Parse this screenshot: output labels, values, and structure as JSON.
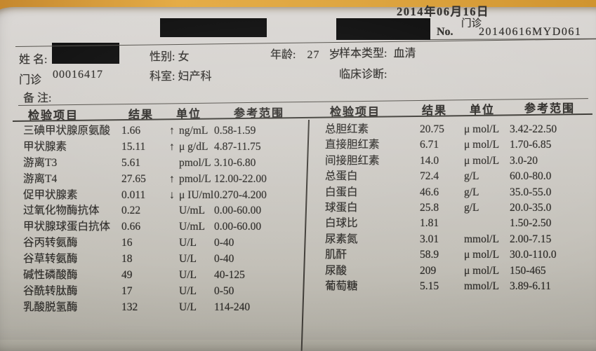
{
  "report": {
    "date": "2014年06月16日",
    "visit_type": "门诊",
    "no_label": "No.",
    "report_no": "20140616MYD061"
  },
  "patient": {
    "name_label": "姓 名:",
    "gender_label": "性别:",
    "gender": "女",
    "age_label": "年龄:",
    "age": "27",
    "age_unit": "岁",
    "sample_type_label": "样本类型:",
    "sample_type": "血清",
    "clinic_label": "门诊",
    "clinic_no": "00016417",
    "dept_label": "科室:",
    "dept": "妇产科",
    "diagnosis_label": "临床诊断:",
    "remark_label": "备 注:"
  },
  "table": {
    "headers": [
      "检验项目",
      "结果",
      "单位",
      "参考范围"
    ],
    "left_rows": [
      {
        "item": "三碘甲状腺原氨酸",
        "result": "1.66",
        "flag": "↑",
        "unit": "ng/mL",
        "range": "0.58-1.59"
      },
      {
        "item": "甲状腺素",
        "result": "15.11",
        "flag": "↑",
        "unit": "μ g/dL",
        "range": "4.87-11.75"
      },
      {
        "item": "游离T3",
        "result": "5.61",
        "flag": "",
        "unit": "pmol/L",
        "range": "3.10-6.80"
      },
      {
        "item": "游离T4",
        "result": "27.65",
        "flag": "↑",
        "unit": "pmol/L",
        "range": "12.00-22.00"
      },
      {
        "item": "促甲状腺素",
        "result": "0.011",
        "flag": "↓",
        "unit": "μ IU/ml",
        "range": "0.270-4.200"
      },
      {
        "item": "过氧化物酶抗体",
        "result": "0.22",
        "flag": "",
        "unit": "U/mL",
        "range": "0.00-60.00"
      },
      {
        "item": "甲状腺球蛋白抗体",
        "result": "0.66",
        "flag": "",
        "unit": "U/mL",
        "range": "0.00-60.00"
      },
      {
        "item": "谷丙转氨酶",
        "result": "16",
        "flag": "",
        "unit": "U/L",
        "range": "0-40"
      },
      {
        "item": "谷草转氨酶",
        "result": "18",
        "flag": "",
        "unit": "U/L",
        "range": "0-40"
      },
      {
        "item": "碱性磷酸酶",
        "result": "49",
        "flag": "",
        "unit": "U/L",
        "range": "40-125"
      },
      {
        "item": "谷酰转肽酶",
        "result": "17",
        "flag": "",
        "unit": "U/L",
        "range": "0-50"
      },
      {
        "item": "乳酸脱氢酶",
        "result": "132",
        "flag": "",
        "unit": "U/L",
        "range": "114-240"
      }
    ],
    "right_rows": [
      {
        "item": "总胆红素",
        "result": "20.75",
        "flag": "",
        "unit": "μ mol/L",
        "range": "3.42-22.50"
      },
      {
        "item": "直接胆红素",
        "result": "6.71",
        "flag": "",
        "unit": "μ mol/L",
        "range": "1.70-6.85"
      },
      {
        "item": "间接胆红素",
        "result": "14.0",
        "flag": "",
        "unit": "μ mol/L",
        "range": "3.0-20"
      },
      {
        "item": "总蛋白",
        "result": "72.4",
        "flag": "",
        "unit": "g/L",
        "range": "60.0-80.0"
      },
      {
        "item": "白蛋白",
        "result": "46.6",
        "flag": "",
        "unit": "g/L",
        "range": "35.0-55.0"
      },
      {
        "item": "球蛋白",
        "result": "25.8",
        "flag": "",
        "unit": "g/L",
        "range": "20.0-35.0"
      },
      {
        "item": "白球比",
        "result": "1.81",
        "flag": "",
        "unit": "",
        "range": "1.50-2.50"
      },
      {
        "item": "尿素氮",
        "result": "3.01",
        "flag": "",
        "unit": "mmol/L",
        "range": "2.00-7.15"
      },
      {
        "item": "肌酐",
        "result": "58.9",
        "flag": "",
        "unit": "μ mol/L",
        "range": "30.0-110.0"
      },
      {
        "item": "尿酸",
        "result": "209",
        "flag": "",
        "unit": "μ mol/L",
        "range": "150-465"
      },
      {
        "item": "葡萄糖",
        "result": "5.15",
        "flag": "",
        "unit": "mmol/L",
        "range": "3.89-6.11"
      }
    ]
  },
  "colors": {
    "background_orange": "#dda239",
    "paper": "#cbc8c2",
    "ink": "#2e2c29",
    "rule_line": "#514e48",
    "redaction": "#0a0a0a"
  }
}
